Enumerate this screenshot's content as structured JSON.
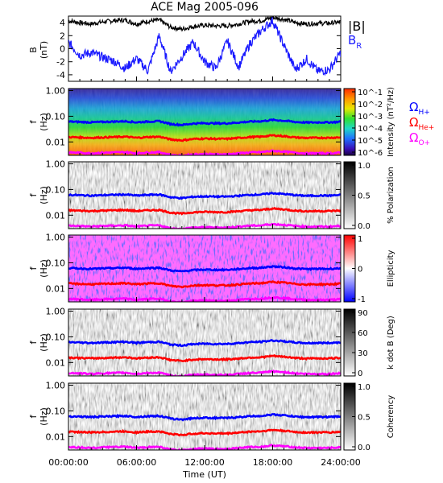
{
  "title": "ACE Mag 2005-096",
  "colors": {
    "bmag": "#000000",
    "br": "#1a1aff",
    "h": "#0000ff",
    "he": "#ff0000",
    "o": "#ff00ff",
    "frame": "#000000"
  },
  "chart_data": [
    {
      "type": "line",
      "panel": "magnetic-field",
      "ylabel": "B",
      "yunit": "(nT)",
      "yticks": [
        "4",
        "2",
        "0",
        "-2",
        "-4"
      ],
      "ylim": [
        -5,
        5
      ],
      "x_hours": [
        0,
        1,
        2,
        3,
        4,
        5,
        6,
        7,
        8,
        9,
        10,
        11,
        12,
        13,
        14,
        15,
        16,
        17,
        18,
        19,
        20,
        21,
        22,
        23,
        24
      ],
      "series": [
        {
          "name": "|B|",
          "values": [
            4.3,
            4.0,
            3.8,
            4.1,
            4.3,
            4.4,
            3.8,
            4.2,
            4.4,
            3.3,
            3.0,
            3.4,
            3.6,
            3.5,
            3.5,
            3.8,
            4.2,
            4.3,
            4.8,
            4.5,
            4.0,
            3.8,
            3.9,
            3.9,
            4.1
          ]
        },
        {
          "name": "B_R",
          "values": [
            1.0,
            -1.0,
            -0.6,
            -1.3,
            -1.9,
            -3.0,
            -1.5,
            -3.4,
            2.0,
            -3.5,
            -1.2,
            1.0,
            -2.0,
            -3.0,
            1.2,
            -2.8,
            0.8,
            2.8,
            4.3,
            0.5,
            -3.2,
            -1.6,
            -3.5,
            -3.2,
            -0.6
          ]
        }
      ],
      "legend": [
        "|B|",
        "B",
        "R"
      ]
    },
    {
      "type": "heatmap",
      "panel": "intensity",
      "ylabel": "f",
      "yunit": "(Hz)",
      "yscale": "log",
      "yticks": [
        "1.00",
        "0.10",
        "0.01"
      ],
      "colorbar_label": "Intensity (nT²/Hz)",
      "colorbar_ticks": [
        "10^-1",
        "10^-2",
        "10^-3",
        "10^-4",
        "10^-5",
        "10^-6"
      ]
    },
    {
      "type": "heatmap",
      "panel": "polarization",
      "ylabel": "f",
      "yunit": "(Hz)",
      "yscale": "log",
      "yticks": [
        "1.00",
        "0.10",
        "0.01"
      ],
      "colorbar_label": "% Polarization",
      "colorbar_ticks": [
        "1.0",
        "0.5",
        "0.0"
      ]
    },
    {
      "type": "heatmap",
      "panel": "ellipticity",
      "ylabel": "f",
      "yunit": "(Hz)",
      "yscale": "log",
      "yticks": [
        "1.00",
        "0.10",
        "0.01"
      ],
      "colorbar_label": "Ellipticity",
      "colorbar_ticks": [
        "1",
        "0",
        "-1"
      ]
    },
    {
      "type": "heatmap",
      "panel": "kdotb",
      "ylabel": "f",
      "yunit": "(Hz)",
      "yscale": "log",
      "yticks": [
        "1.00",
        "0.10",
        "0.01"
      ],
      "colorbar_label": "k dot B (Deg)",
      "colorbar_ticks": [
        "90",
        "60",
        "30",
        "0"
      ]
    },
    {
      "type": "heatmap",
      "panel": "coherency",
      "ylabel": "f",
      "yunit": "(Hz)",
      "yscale": "log",
      "yticks": [
        "1.00",
        "0.10",
        "0.01"
      ],
      "colorbar_label": "Coherency",
      "colorbar_ticks": [
        "1.0",
        "0.5",
        "0.0"
      ]
    }
  ],
  "gyrofrequency": {
    "legend": [
      {
        "text": "Ω",
        "sub": "H+",
        "color": "#0000ff"
      },
      {
        "text": "Ω",
        "sub": "He+",
        "color": "#ff0000"
      },
      {
        "text": "Ω",
        "sub": "O+",
        "color": "#ff00ff"
      }
    ],
    "x_hours": [
      0,
      1,
      2,
      3,
      4,
      5,
      6,
      7,
      8,
      9,
      10,
      11,
      12,
      13,
      14,
      15,
      16,
      17,
      18,
      19,
      20,
      21,
      22,
      23,
      24
    ],
    "h_plus_hz": [
      0.062,
      0.06,
      0.058,
      0.06,
      0.062,
      0.064,
      0.058,
      0.062,
      0.064,
      0.05,
      0.046,
      0.052,
      0.054,
      0.053,
      0.053,
      0.057,
      0.062,
      0.064,
      0.072,
      0.067,
      0.06,
      0.057,
      0.058,
      0.058,
      0.061
    ],
    "he_plus_hz": [
      0.0155,
      0.015,
      0.0145,
      0.015,
      0.0155,
      0.016,
      0.0145,
      0.0155,
      0.016,
      0.0125,
      0.0115,
      0.013,
      0.0135,
      0.0132,
      0.0132,
      0.0143,
      0.0155,
      0.016,
      0.018,
      0.0168,
      0.015,
      0.0143,
      0.0145,
      0.0145,
      0.0152
    ],
    "o_plus_hz": [
      0.0039,
      0.0038,
      0.0036,
      0.0038,
      0.0039,
      0.004,
      0.0036,
      0.0039,
      0.004,
      0.0031,
      0.0029,
      0.0033,
      0.0034,
      0.0033,
      0.0033,
      0.0036,
      0.0039,
      0.004,
      0.0045,
      0.0042,
      0.0038,
      0.0036,
      0.0036,
      0.0036,
      0.0038
    ]
  },
  "xaxis": {
    "ticks": [
      "00:00:00",
      "06:00:00",
      "12:00:00",
      "18:00:00",
      "24:00:00"
    ],
    "label": "Time (UT)"
  }
}
